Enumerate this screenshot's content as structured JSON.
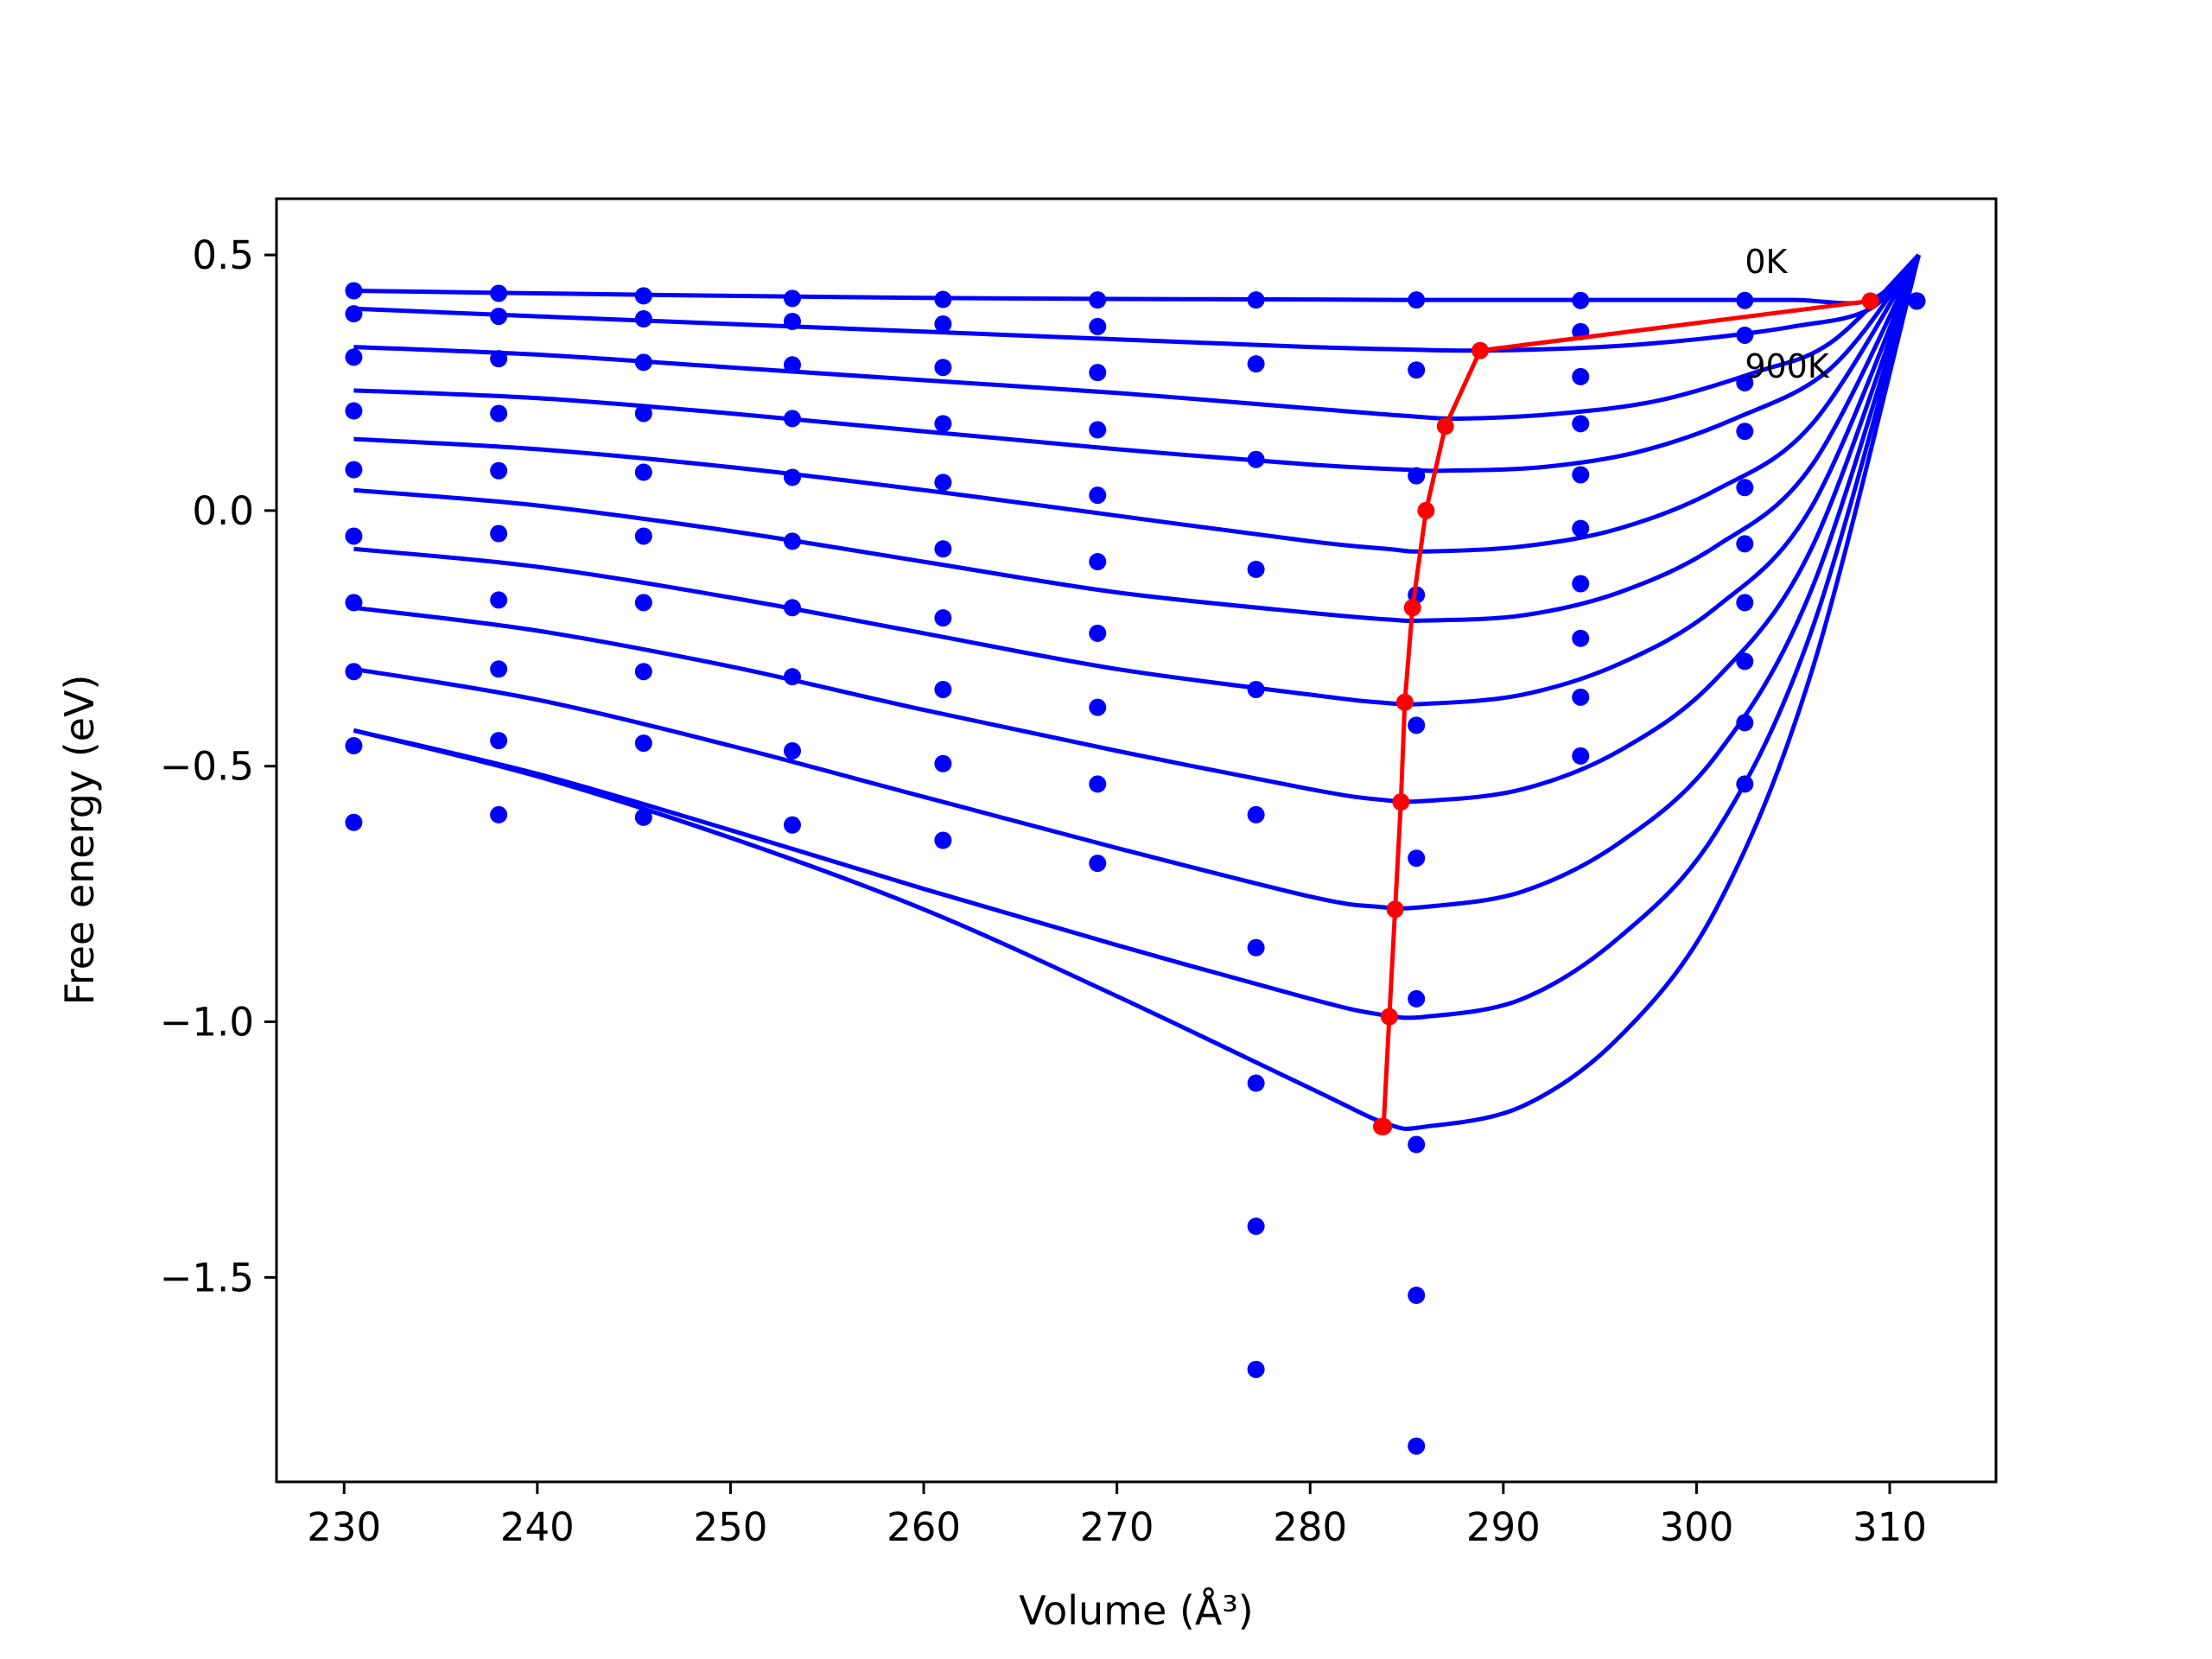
{
  "chart_data": {
    "type": "line",
    "title": "",
    "xlabel": "Volume (Å³)",
    "ylabel": "Free energy (eV)",
    "xlim": [
      226.5,
      315.5
    ],
    "ylim": [
      -1.9,
      0.61
    ],
    "xticks": [
      230,
      240,
      250,
      260,
      270,
      280,
      290,
      300,
      310
    ],
    "yticks": [
      0.5,
      0.0,
      -0.5,
      -1.0,
      -1.5
    ],
    "ytick_labels": [
      "0.5",
      "0.0",
      "−0.5",
      "−1.0",
      "−1.5"
    ],
    "grid": false,
    "colors": {
      "curves": "#0000ff",
      "minima": "#ff0000"
    },
    "annotations": [
      {
        "text": "0K",
        "x": 302.5,
        "y": 0.465
      },
      {
        "text": "900K",
        "x": 302.5,
        "y": 0.26
      }
    ],
    "data_volumes": [
      230.5,
      238.0,
      245.5,
      253.2,
      261.0,
      269.0,
      277.2,
      285.5,
      294.0,
      302.5,
      311.4
    ],
    "data_points": [
      [
        0.43,
        0.425,
        0.42,
        0.415,
        0.413,
        0.412,
        0.412,
        0.412,
        0.411,
        0.411,
        0.41
      ],
      [
        0.385,
        0.38,
        0.375,
        0.37,
        0.365,
        0.36,
        null,
        null,
        0.35,
        0.343,
        0.41
      ],
      [
        0.3,
        0.297,
        0.29,
        0.285,
        0.28,
        0.27,
        0.287,
        0.275,
        0.262,
        0.25,
        0.41
      ],
      [
        0.195,
        0.19,
        0.19,
        0.18,
        0.17,
        0.158,
        0.1,
        0.068,
        0.17,
        0.155,
        0.41
      ],
      [
        0.08,
        0.078,
        0.075,
        0.065,
        0.055,
        0.03,
        -0.115,
        -0.165,
        0.07,
        0.045,
        0.41
      ],
      [
        -0.05,
        -0.045,
        -0.05,
        -0.06,
        -0.075,
        -0.1,
        -0.35,
        -0.42,
        -0.035,
        -0.065,
        0.41
      ],
      [
        -0.18,
        -0.175,
        -0.18,
        -0.19,
        -0.21,
        -0.24,
        -0.595,
        -0.68,
        -0.143,
        -0.18,
        0.41
      ],
      [
        -0.315,
        -0.31,
        -0.315,
        -0.325,
        -0.35,
        -0.385,
        -0.855,
        -0.955,
        -0.25,
        -0.295,
        0.41
      ],
      [
        -0.46,
        -0.45,
        -0.455,
        -0.47,
        -0.495,
        -0.535,
        -1.12,
        -1.24,
        -0.365,
        -0.415,
        0.41
      ],
      [
        -0.61,
        -0.595,
        -0.6,
        -0.615,
        -0.645,
        -0.69,
        -1.4,
        -1.535,
        -0.48,
        -0.535,
        0.41
      ],
      [
        null,
        null,
        null,
        null,
        null,
        null,
        -1.68,
        -1.83,
        null,
        null,
        null
      ]
    ],
    "series": [
      {
        "name": "",
        "x": [
          230.5,
          240,
          250,
          260,
          270,
          280,
          285,
          290,
          295,
          300,
          305,
          309,
          311.5
        ],
        "y": [
          0.43,
          0.425,
          0.42,
          0.416,
          0.414,
          0.413,
          0.412,
          0.412,
          0.412,
          0.412,
          0.412,
          0.412,
          0.5
        ]
      },
      {
        "name": "",
        "x": [
          230.5,
          240,
          250,
          260,
          270,
          280,
          285,
          289,
          295,
          300,
          305,
          309,
          311.5
        ],
        "y": [
          0.395,
          0.38,
          0.365,
          0.35,
          0.335,
          0.32,
          0.315,
          0.313,
          0.32,
          0.335,
          0.36,
          0.395,
          0.5
        ]
      },
      {
        "name": "",
        "x": [
          230.5,
          240,
          250,
          260,
          270,
          280,
          285,
          288,
          293,
          298,
          303,
          307,
          311.5
        ],
        "y": [
          0.32,
          0.305,
          0.28,
          0.255,
          0.23,
          0.2,
          0.185,
          0.18,
          0.19,
          0.215,
          0.27,
          0.33,
          0.5
        ]
      },
      {
        "name": "",
        "x": [
          230.5,
          240,
          250,
          260,
          270,
          280,
          285,
          287,
          292,
          297,
          302,
          307,
          311.5
        ],
        "y": [
          0.235,
          0.22,
          0.19,
          0.155,
          0.12,
          0.09,
          0.08,
          0.078,
          0.085,
          0.115,
          0.18,
          0.28,
          0.5
        ]
      },
      {
        "name": "",
        "x": [
          230.5,
          240,
          250,
          260,
          270,
          280,
          284,
          286,
          291,
          296,
          301,
          306,
          311.5
        ],
        "y": [
          0.14,
          0.12,
          0.085,
          0.04,
          -0.01,
          -0.06,
          -0.075,
          -0.08,
          -0.07,
          -0.035,
          0.04,
          0.17,
          0.5
        ]
      },
      {
        "name": "",
        "x": [
          230.5,
          240,
          250,
          260,
          270,
          280,
          284,
          286,
          291,
          296,
          301,
          306,
          311.5
        ],
        "y": [
          0.04,
          0.01,
          -0.04,
          -0.1,
          -0.16,
          -0.2,
          -0.213,
          -0.215,
          -0.205,
          -0.16,
          -0.07,
          0.09,
          0.5
        ]
      },
      {
        "name": "",
        "x": [
          230.5,
          240,
          250,
          260,
          270,
          280,
          283.5,
          286,
          291,
          296,
          301,
          306,
          311.5
        ],
        "y": [
          -0.075,
          -0.11,
          -0.17,
          -0.24,
          -0.31,
          -0.36,
          -0.375,
          -0.378,
          -0.36,
          -0.3,
          -0.19,
          0.01,
          0.5
        ]
      },
      {
        "name": "",
        "x": [
          230.5,
          240,
          250,
          260,
          270,
          280,
          283.5,
          286,
          291,
          296,
          301,
          306,
          311.5
        ],
        "y": [
          -0.19,
          -0.235,
          -0.305,
          -0.39,
          -0.47,
          -0.545,
          -0.565,
          -0.568,
          -0.545,
          -0.47,
          -0.33,
          -0.07,
          0.5
        ]
      },
      {
        "name": "",
        "x": [
          230.5,
          240,
          250,
          260,
          270,
          280,
          283.5,
          286,
          291,
          296,
          301,
          306,
          311.5
        ],
        "y": [
          -0.31,
          -0.37,
          -0.46,
          -0.56,
          -0.66,
          -0.755,
          -0.775,
          -0.775,
          -0.745,
          -0.65,
          -0.48,
          -0.15,
          0.5
        ]
      },
      {
        "name": "",
        "x": [
          230.5,
          240,
          250,
          260,
          270,
          280,
          283.5,
          286,
          291,
          296,
          301,
          306,
          311.5
        ],
        "y": [
          -0.43,
          -0.515,
          -0.625,
          -0.74,
          -0.85,
          -0.955,
          -0.985,
          -0.99,
          -0.955,
          -0.835,
          -0.63,
          -0.23,
          0.5
        ]
      },
      {
        "name": "",
        "x": [
          230.5,
          240,
          250,
          260,
          270,
          280,
          284,
          286,
          291,
          296,
          301,
          306,
          311.5
        ],
        "y": [
          -0.43,
          -0.52,
          -0.64,
          -0.78,
          -0.95,
          -1.13,
          -1.2,
          -1.205,
          -1.165,
          -1.03,
          -0.78,
          -0.31,
          0.5
        ]
      }
    ],
    "minima_path": {
      "x": [
        309.0,
        288.8,
        287.0,
        286.0,
        285.3,
        284.9,
        284.7,
        284.4,
        284.1,
        283.8,
        283.7
      ],
      "y": [
        0.41,
        0.313,
        0.165,
        0.0,
        -0.19,
        -0.375,
        -0.57,
        -0.78,
        -0.99,
        -1.205,
        -1.205
      ]
    }
  }
}
